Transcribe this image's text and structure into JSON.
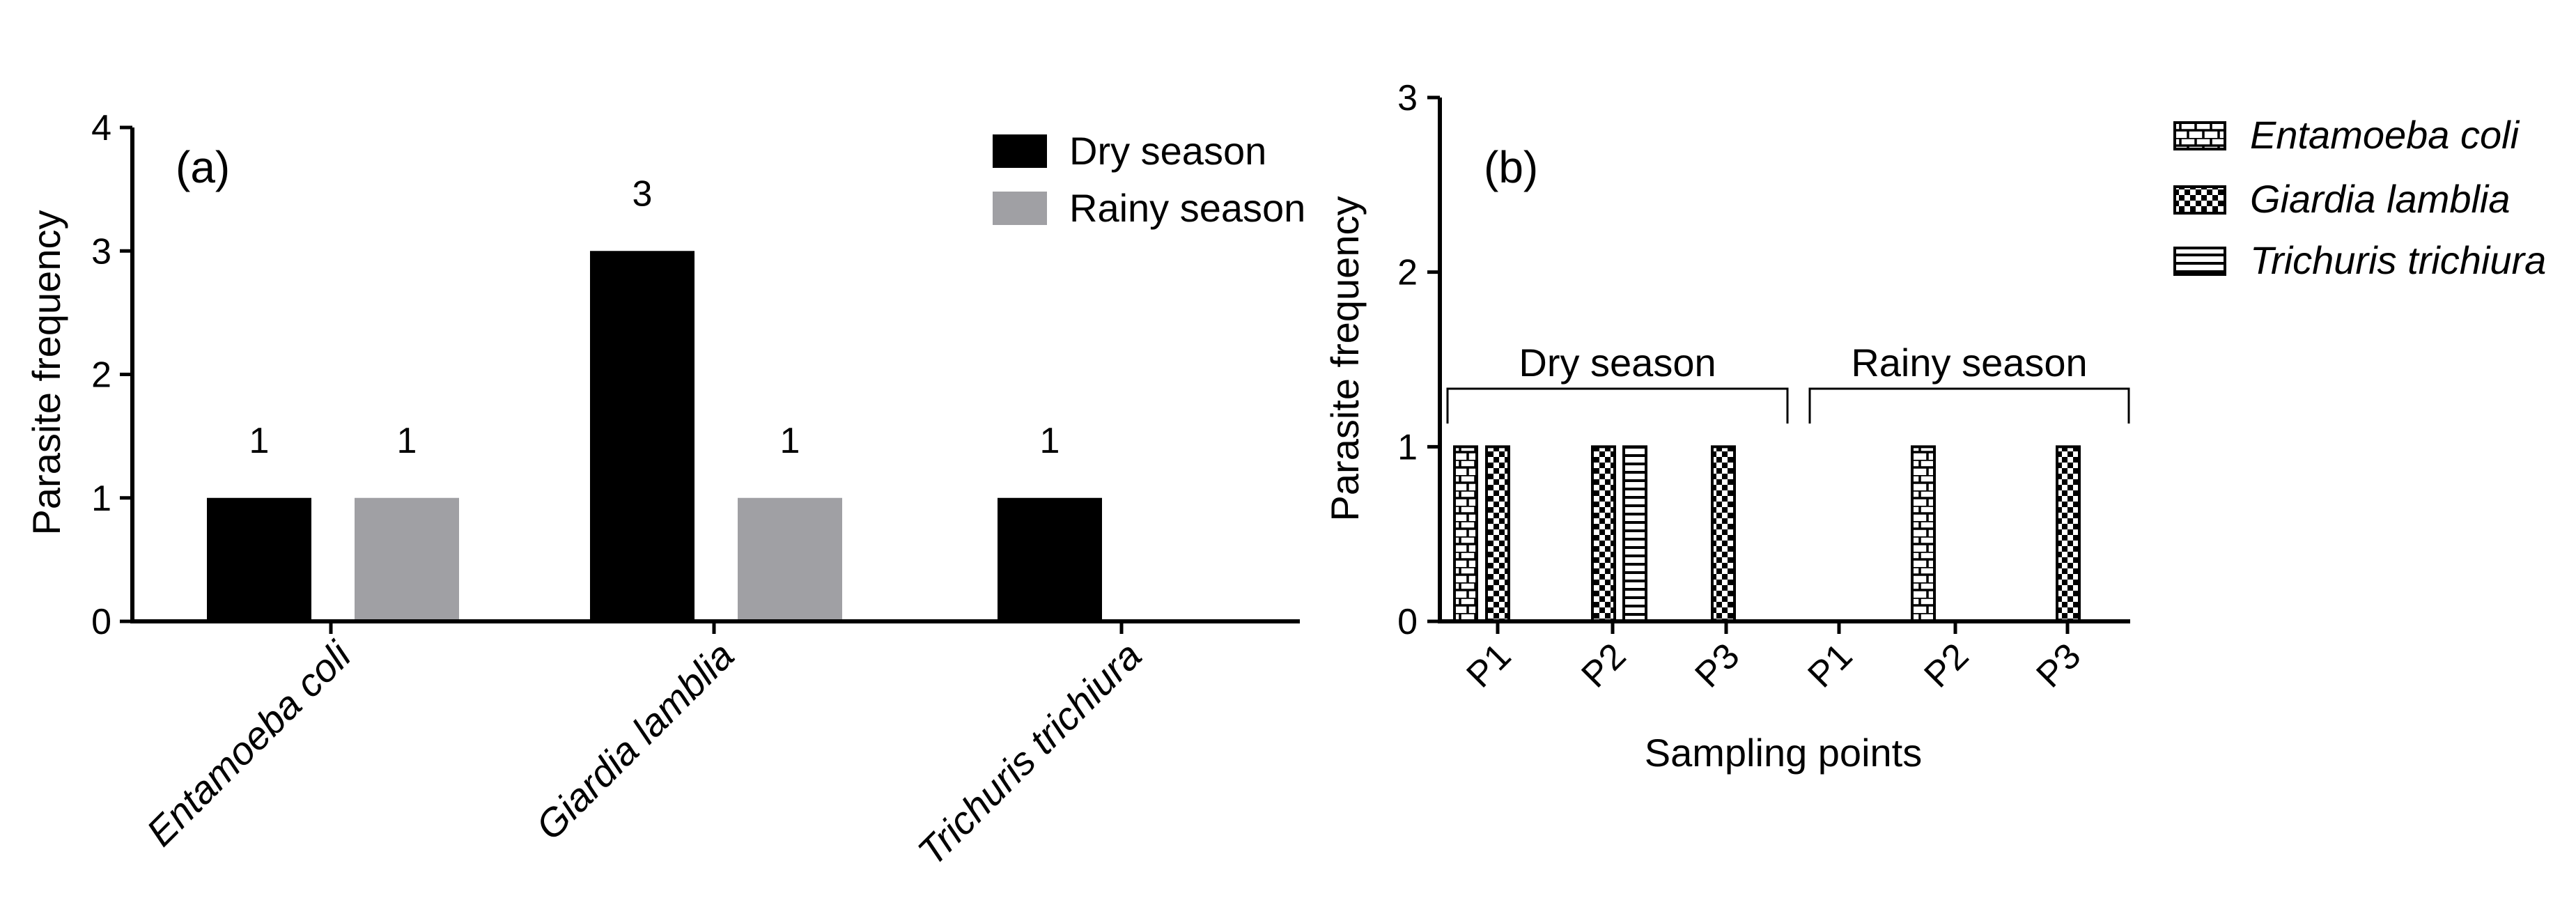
{
  "chart_data": [
    {
      "panel": "(a)",
      "type": "bar",
      "ylabel": "Parasite frequency",
      "xlabel": "",
      "ylim": [
        0,
        4
      ],
      "yticks": [
        "0",
        "1",
        "2",
        "3",
        "4"
      ],
      "categories": [
        "Entamoeba coli",
        "Giardia lamblia",
        "Trichuris trichiura"
      ],
      "series": [
        {
          "name": "Dry season",
          "color": "#000000",
          "values": [
            1,
            3,
            1
          ]
        },
        {
          "name": "Rainy season",
          "color": "#a0a0a4",
          "values": [
            1,
            1,
            0
          ]
        }
      ],
      "data_labels": {
        "dry": [
          "1",
          "3",
          "1"
        ],
        "rainy": [
          "1",
          "1",
          ""
        ]
      },
      "legend_position": "top-right"
    },
    {
      "panel": "(b)",
      "type": "bar",
      "ylabel": "Parasite frequency",
      "xlabel": "Sampling points",
      "ylim": [
        0,
        3
      ],
      "yticks": [
        "0",
        "1",
        "2",
        "3"
      ],
      "groups": [
        "Dry season",
        "Rainy season"
      ],
      "categories": [
        "P1",
        "P2",
        "P3",
        "P1",
        "P2",
        "P3"
      ],
      "series": [
        {
          "name": "Entamoeba coli",
          "pattern": "brick",
          "values": [
            1,
            0,
            0,
            0,
            1,
            0
          ]
        },
        {
          "name": "Giardia lamblia",
          "pattern": "checker",
          "values": [
            1,
            1,
            1,
            0,
            0,
            1
          ]
        },
        {
          "name": "Trichuris trichiura",
          "pattern": "hlines",
          "values": [
            0,
            1,
            0,
            0,
            0,
            0
          ]
        }
      ],
      "legend_position": "right"
    }
  ]
}
